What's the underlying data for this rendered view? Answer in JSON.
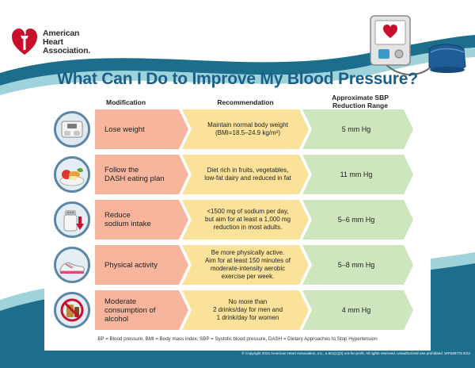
{
  "brand": {
    "line1": "American",
    "line2": "Heart",
    "line3": "Association."
  },
  "title": "What Can I Do to Improve My Blood Pressure?",
  "headers": {
    "modification": "Modification",
    "recommendation": "Recommendation",
    "reduction_line1": "Approximate SBP",
    "reduction_line2": "Reduction Range"
  },
  "rows": [
    {
      "icon": "scale-icon",
      "modification": "Lose weight",
      "recommendation_lines": [
        "Maintain normal body weight",
        "(BMI=18.5–24.9 kg/m²)"
      ],
      "reduction": "5 mm Hg"
    },
    {
      "icon": "healthy-food-icon",
      "modification_lines": [
        "Follow the",
        "DASH eating plan"
      ],
      "recommendation_lines": [
        "Diet rich in fruits, vegetables,",
        "low-fat dairy and reduced in fat"
      ],
      "reduction": "11 mm Hg"
    },
    {
      "icon": "salt-shaker-icon",
      "modification_lines": [
        "Reduce",
        "sodium intake"
      ],
      "recommendation_lines": [
        "<1500 mg of sodium per day,",
        "but aim for at least a 1,000 mg",
        "reduction in most adults."
      ],
      "reduction": "5–6 mm Hg"
    },
    {
      "icon": "sneaker-icon",
      "modification": "Physical activity",
      "recommendation_lines": [
        "Be more physically active.",
        "Aim for at least 150 minutes of",
        "moderate-intensity aerobic",
        "exercise per week."
      ],
      "reduction": "5–8 mm Hg"
    },
    {
      "icon": "no-alcohol-icon",
      "modification_lines": [
        "Moderate",
        "consumption of",
        "alcohol"
      ],
      "recommendation_lines": [
        "No more than",
        "2 drinks/day for men and",
        "1 drink/day for women"
      ],
      "reduction": "4 mm Hg"
    }
  ],
  "footnote": "BP = Blood pressure, BMI = Body mass index, SBP = Systolic blood pressure, DASH = Dietary Approaches to Stop Hypertension",
  "copyright": "© Copyright 2024 American Heart Association, Inc., a 501(c)(3) not-for-profit.  All rights reserved. Unauthorized use prohibited. WF538775 5/24",
  "colors": {
    "teal_band": "#1d6e8c",
    "teal_light": "#9fd3dc",
    "title_blue": "#1b5e86",
    "modification_fill": "#f6b59c",
    "recommendation_fill": "#fbe29b",
    "reduction_fill": "#cde6bd",
    "heart_red": "#c8102e"
  }
}
